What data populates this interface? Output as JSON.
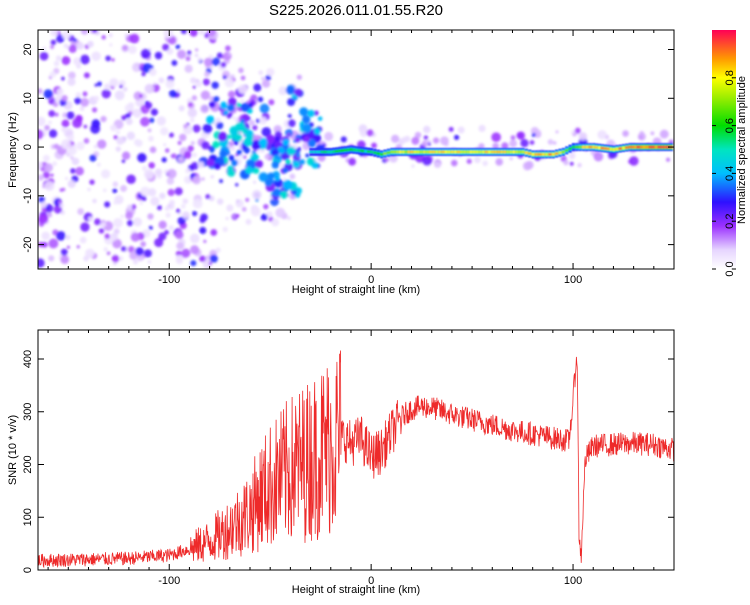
{
  "title": "S225.2026.011.01.55.R20",
  "colors": {
    "snr_line": "#ee2a2a",
    "frame": "#000000"
  },
  "chart_data": [
    {
      "type": "heatmap",
      "name": "spectrogram",
      "xlabel": "Height of straight line (km)",
      "ylabel": "Frequency (Hz)",
      "xlim": [
        -165,
        150
      ],
      "ylim": [
        -25,
        24
      ],
      "xticks": [
        -100,
        0,
        100
      ],
      "yticks": [
        -20,
        -10,
        0,
        10,
        20
      ],
      "colorbar": {
        "label": "Normalized spectral amplitude",
        "range": [
          0,
          1
        ],
        "ticks": [
          "0.0",
          "0.2",
          "0.4",
          "0.6",
          "0.8"
        ],
        "tick_values": [
          0.0,
          0.2,
          0.4,
          0.6,
          0.8
        ]
      },
      "carrier_trace": {
        "x": [
          -30,
          -20,
          -10,
          0,
          5,
          10,
          20,
          40,
          60,
          75,
          80,
          85,
          90,
          95,
          100,
          105,
          110,
          120,
          128,
          135,
          150
        ],
        "y": [
          -1,
          -1,
          -0.5,
          -1,
          -1.5,
          -1,
          -1,
          -1,
          -1,
          -1,
          -1.5,
          -1.5,
          -1.5,
          -1,
          0,
          0,
          0,
          -0.5,
          0,
          0,
          0
        ],
        "amplitude": [
          0.45,
          0.6,
          0.65,
          0.55,
          0.7,
          0.8,
          0.85,
          0.85,
          0.85,
          0.85,
          0.9,
          0.9,
          0.9,
          0.8,
          0.6,
          0.85,
          0.9,
          0.9,
          0.95,
          1.0,
          1.0
        ]
      }
    },
    {
      "type": "line",
      "name": "snr",
      "xlabel": "Height of straight line (km)",
      "ylabel": "SNR (10 * v/v)",
      "xlim": [
        -165,
        150
      ],
      "ylim": [
        0,
        455
      ],
      "xticks": [
        -100,
        0,
        100
      ],
      "yticks": [
        0,
        100,
        200,
        300,
        400
      ],
      "series": [
        {
          "name": "SNR",
          "x": [
            -165,
            -140,
            -120,
            -100,
            -90,
            -80,
            -70,
            -60,
            -55,
            -50,
            -45,
            -40,
            -35,
            -30,
            -25,
            -20,
            -15,
            -10,
            -5,
            0,
            5,
            10,
            15,
            20,
            25,
            30,
            40,
            50,
            60,
            70,
            80,
            90,
            98,
            100,
            102,
            103,
            104,
            106,
            110,
            120,
            130,
            140,
            150
          ],
          "y": [
            18,
            20,
            22,
            28,
            40,
            55,
            80,
            110,
            140,
            160,
            175,
            190,
            200,
            210,
            225,
            240,
            255,
            240,
            250,
            215,
            225,
            260,
            290,
            305,
            310,
            308,
            295,
            285,
            275,
            265,
            258,
            250,
            245,
            320,
            420,
            60,
            25,
            210,
            235,
            238,
            240,
            238,
            228
          ]
        }
      ]
    }
  ]
}
